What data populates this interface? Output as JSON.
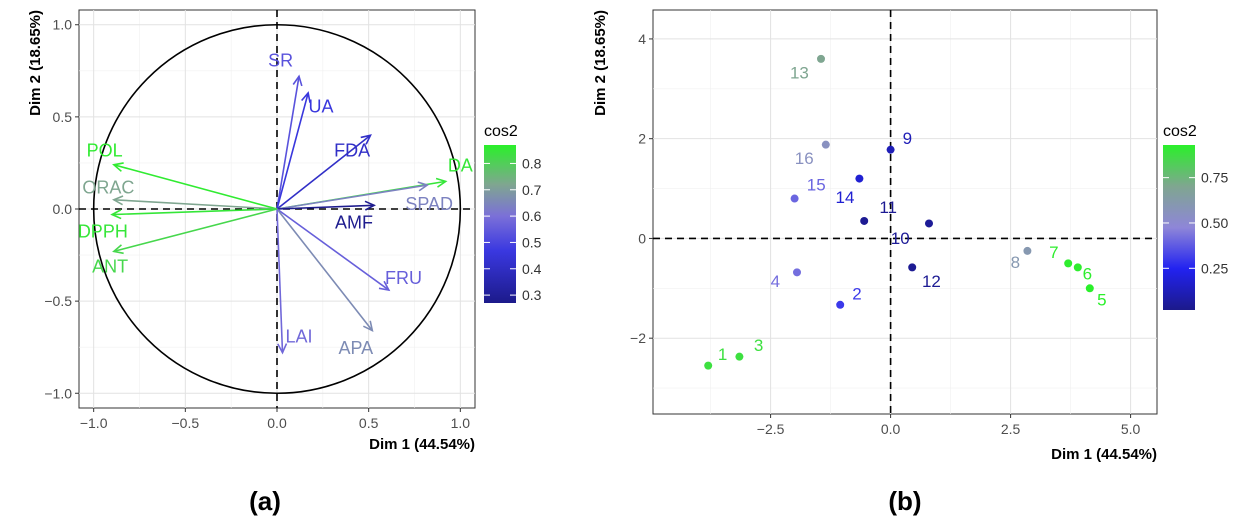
{
  "chart_data": [
    {
      "type": "scatter",
      "panel_label": "(a)",
      "xlabel": "Dim 1 (44.54%)",
      "ylabel": "Dim 2 (18.65%)",
      "xlim": [
        -1.08,
        1.08
      ],
      "ylim": [
        -1.08,
        1.08
      ],
      "xticks": [
        -1.0,
        -0.5,
        0.0,
        0.5,
        1.0
      ],
      "xtick_labels": [
        "−1.0",
        "−0.5",
        "0.0",
        "0.5",
        "1.0"
      ],
      "yticks": [
        -1.0,
        -0.5,
        0.0,
        0.5,
        1.0
      ],
      "ytick_labels": [
        "−1.0",
        "−0.5",
        "0.0",
        "0.5",
        "1.0"
      ],
      "grid": true,
      "legend": {
        "title": "cos2",
        "ticks": [
          0.3,
          0.4,
          0.5,
          0.6,
          0.7,
          0.8
        ],
        "tick_labels": [
          "0.3",
          "0.4",
          "0.5",
          "0.6",
          "0.7",
          "0.8"
        ],
        "range": [
          0.27,
          0.87
        ],
        "placement": "right"
      },
      "vectors": [
        {
          "name": "SR",
          "x": 0.12,
          "y": 0.72,
          "cos2": 0.53,
          "lx": 0.02,
          "ly": 0.8
        },
        {
          "name": "UA",
          "x": 0.17,
          "y": 0.63,
          "cos2": 0.46,
          "lx": 0.24,
          "ly": 0.55
        },
        {
          "name": "FDA",
          "x": 0.51,
          "y": 0.4,
          "cos2": 0.41,
          "lx": 0.41,
          "ly": 0.31
        },
        {
          "name": "DA",
          "x": 0.92,
          "y": 0.15,
          "cos2": 0.85,
          "lx": 1.0,
          "ly": 0.23
        },
        {
          "name": "SPAD",
          "x": 0.82,
          "y": 0.13,
          "cos2": 0.64,
          "lx": 0.83,
          "ly": 0.02
        },
        {
          "name": "AMF",
          "x": 0.53,
          "y": 0.02,
          "cos2": 0.28,
          "lx": 0.42,
          "ly": -0.08
        },
        {
          "name": "FRU",
          "x": 0.61,
          "y": -0.44,
          "cos2": 0.56,
          "lx": 0.69,
          "ly": -0.38
        },
        {
          "name": "APA",
          "x": 0.52,
          "y": -0.66,
          "cos2": 0.66,
          "lx": 0.43,
          "ly": -0.76
        },
        {
          "name": "LAI",
          "x": 0.03,
          "y": -0.78,
          "cos2": 0.58,
          "lx": 0.12,
          "ly": -0.7
        },
        {
          "name": "POL",
          "x": -0.89,
          "y": 0.24,
          "cos2": 0.86,
          "lx": -0.94,
          "ly": 0.31
        },
        {
          "name": "ORAC",
          "x": -0.89,
          "y": 0.05,
          "cos2": 0.72,
          "lx": -0.92,
          "ly": 0.11
        },
        {
          "name": "DPPH",
          "x": -0.9,
          "y": -0.03,
          "cos2": 0.85,
          "lx": -0.95,
          "ly": -0.13
        },
        {
          "name": "ANT",
          "x": -0.89,
          "y": -0.23,
          "cos2": 0.82,
          "lx": -0.91,
          "ly": -0.32
        }
      ]
    },
    {
      "type": "scatter",
      "panel_label": "(b)",
      "xlabel": "Dim 1 (44.54%)",
      "ylabel": "Dim 2 (18.65%)",
      "xlim": [
        -4.95,
        5.55
      ],
      "ylim": [
        -3.52,
        4.58
      ],
      "xticks": [
        -2.5,
        0.0,
        2.5,
        5.0
      ],
      "xtick_labels": [
        "−2.5",
        "0.0",
        "2.5",
        "5.0"
      ],
      "yticks": [
        -2,
        0,
        2,
        4
      ],
      "ytick_labels": [
        "−2",
        "0",
        "2",
        "4"
      ],
      "grid": true,
      "legend": {
        "title": "cos2",
        "ticks": [
          0.25,
          0.5,
          0.75
        ],
        "tick_labels": [
          "0.25",
          "0.50",
          "0.75"
        ],
        "range": [
          0.02,
          0.93
        ],
        "placement": "right"
      },
      "points": [
        {
          "label": "1",
          "x": -3.8,
          "y": -2.55,
          "cos2": 0.88,
          "lx": -3.5,
          "ly": -2.35
        },
        {
          "label": "2",
          "x": -1.05,
          "y": -1.33,
          "cos2": 0.3,
          "lx": -0.7,
          "ly": -1.13
        },
        {
          "label": "3",
          "x": -3.15,
          "y": -2.37,
          "cos2": 0.88,
          "lx": -2.75,
          "ly": -2.17
        },
        {
          "label": "4",
          "x": -1.95,
          "y": -0.68,
          "cos2": 0.42,
          "lx": -2.4,
          "ly": -0.88
        },
        {
          "label": "5",
          "x": 4.15,
          "y": -1.0,
          "cos2": 0.93,
          "lx": 4.4,
          "ly": -1.25
        },
        {
          "label": "6",
          "x": 3.9,
          "y": -0.58,
          "cos2": 0.92,
          "lx": 4.1,
          "ly": -0.73
        },
        {
          "label": "7",
          "x": 3.7,
          "y": -0.5,
          "cos2": 0.92,
          "lx": 3.4,
          "ly": -0.3
        },
        {
          "label": "8",
          "x": 2.85,
          "y": -0.25,
          "cos2": 0.6,
          "lx": 2.6,
          "ly": -0.5
        },
        {
          "label": "9",
          "x": 0.0,
          "y": 1.78,
          "cos2": 0.12,
          "lx": 0.35,
          "ly": 1.98
        },
        {
          "label": "10",
          "x": 0.8,
          "y": 0.3,
          "cos2": 0.05,
          "lx": 0.2,
          "ly": -0.02
        },
        {
          "label": "11",
          "x": -0.55,
          "y": 0.35,
          "cos2": 0.04,
          "lx": -0.05,
          "ly": 0.6
        },
        {
          "label": "12",
          "x": 0.45,
          "y": -0.58,
          "cos2": 0.04,
          "lx": 0.85,
          "ly": -0.88
        },
        {
          "label": "13",
          "x": -1.45,
          "y": 3.6,
          "cos2": 0.7,
          "lx": -1.9,
          "ly": 3.3
        },
        {
          "label": "14",
          "x": -0.65,
          "y": 1.2,
          "cos2": 0.18,
          "lx": -0.95,
          "ly": 0.8
        },
        {
          "label": "15",
          "x": -2.0,
          "y": 0.8,
          "cos2": 0.4,
          "lx": -1.55,
          "ly": 1.05
        },
        {
          "label": "16",
          "x": -1.35,
          "y": 1.88,
          "cos2": 0.55,
          "lx": -1.8,
          "ly": 1.58
        }
      ]
    }
  ]
}
